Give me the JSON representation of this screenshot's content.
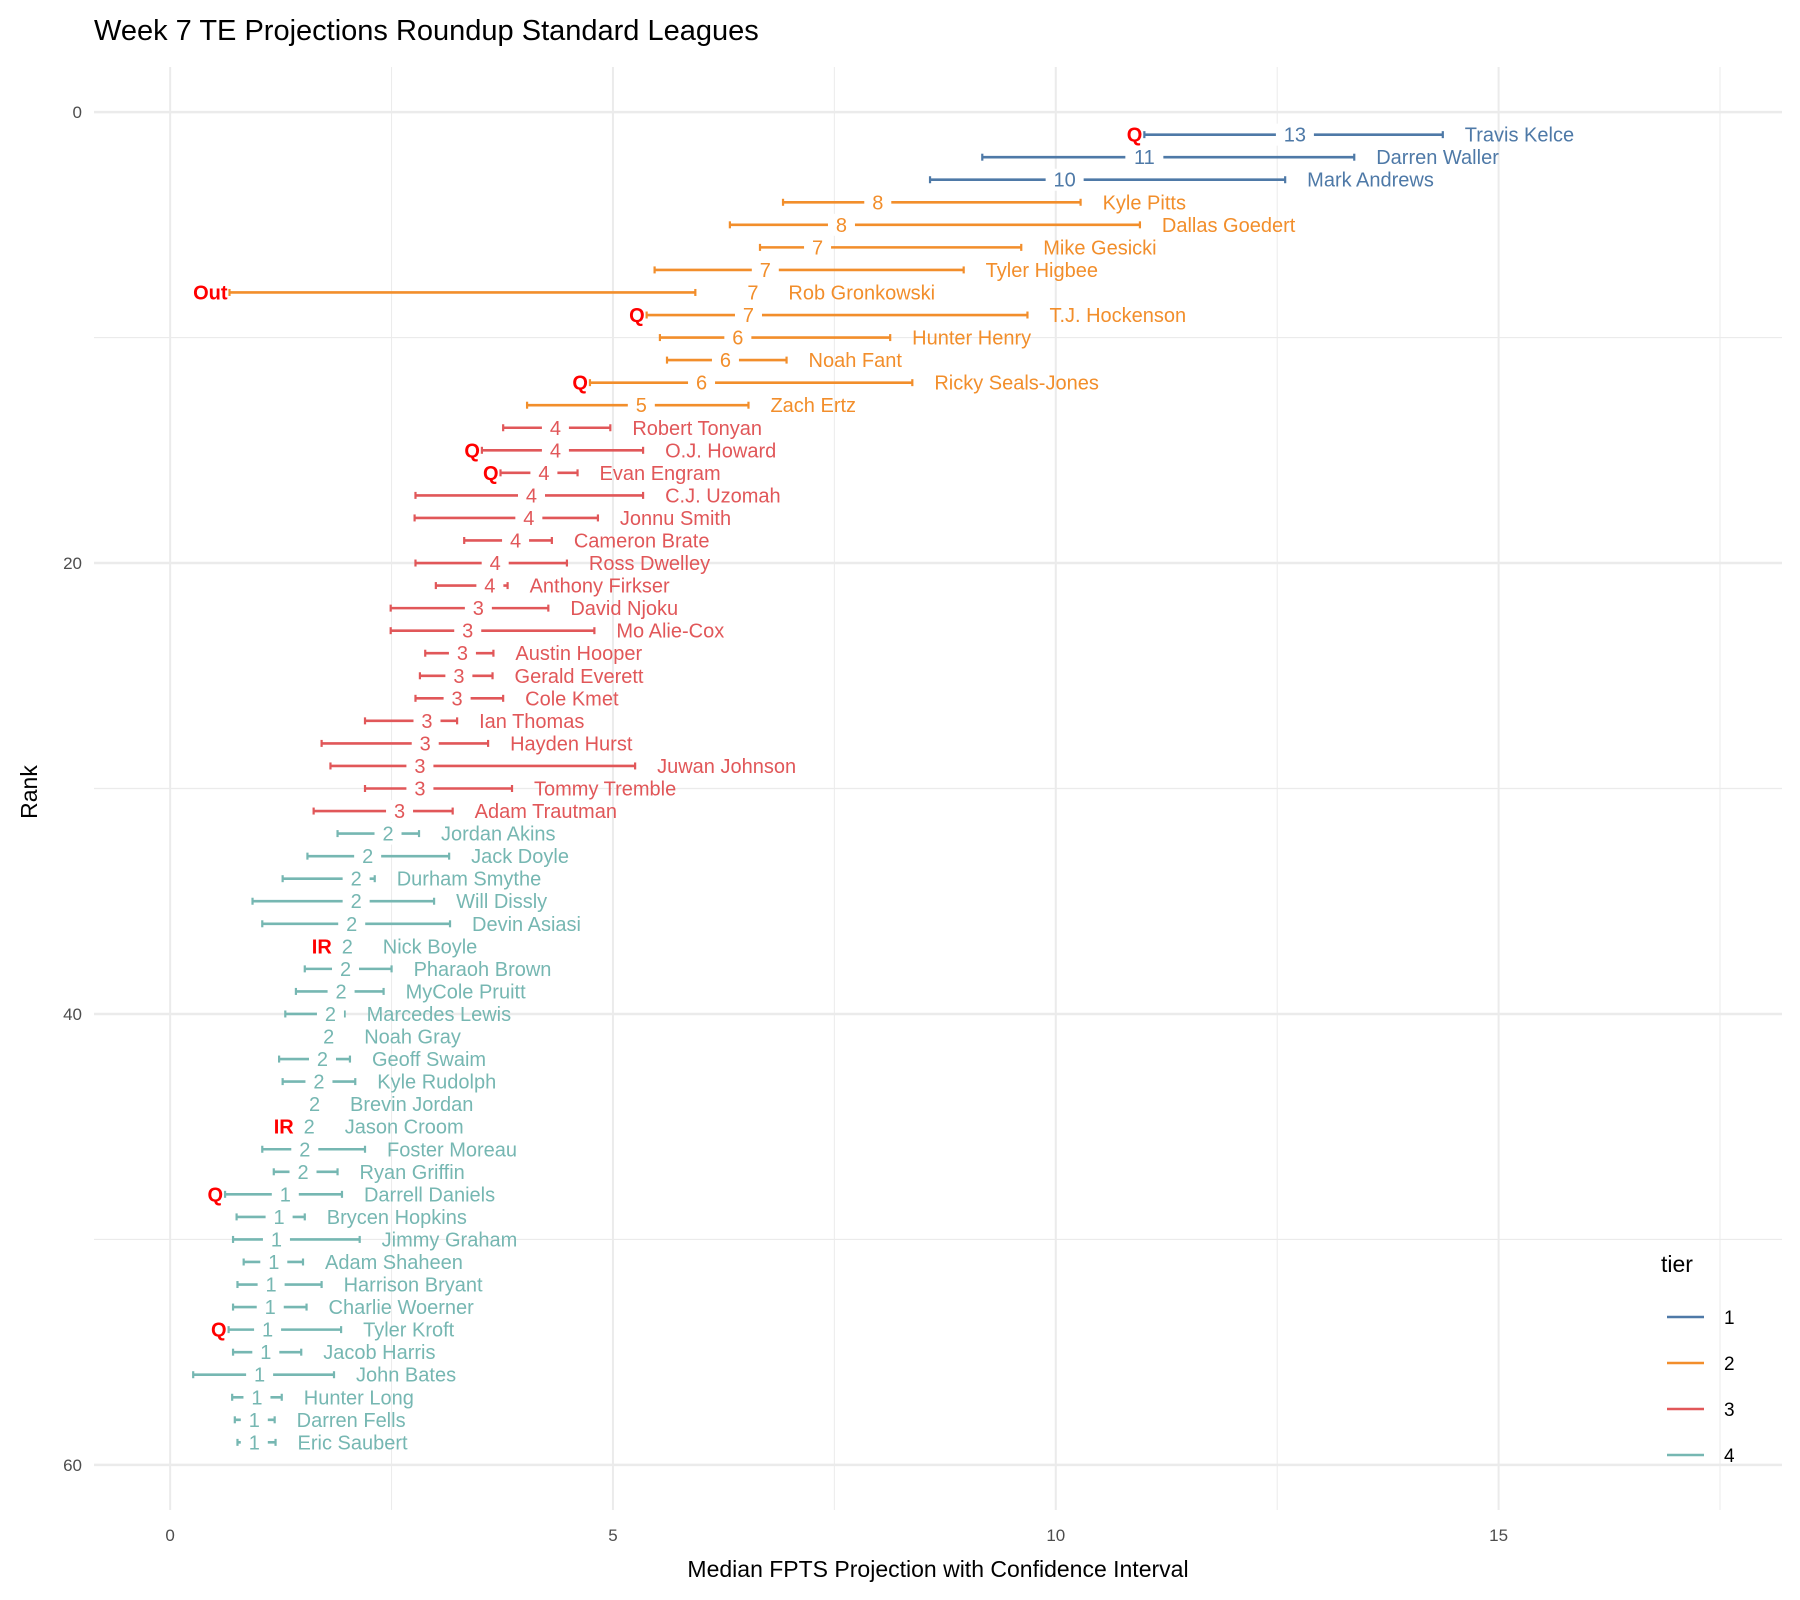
{
  "chart_data": {
    "type": "errorbar",
    "title": "Week 7 TE Projections Roundup Standard Leagues",
    "xlabel": "Median FPTS Projection with Confidence Interval",
    "ylabel": "Rank",
    "xlim": [
      -0.86,
      18.2
    ],
    "ylim": [
      62,
      -2
    ],
    "x_ticks": [
      0,
      5,
      10,
      15
    ],
    "y_ticks": [
      0,
      20,
      40,
      60
    ],
    "grid": true,
    "legend": {
      "title": "tier",
      "position": "right-bottom",
      "entries": [
        "1",
        "2",
        "3",
        "4"
      ]
    },
    "tier_colors": {
      "1": "#4E79A7",
      "2": "#F28E2B",
      "3": "#E15759",
      "4": "#76B7B2"
    },
    "status_color": "#FF0000",
    "players": [
      {
        "rank": 1,
        "name": "Travis Kelce",
        "tier": 1,
        "low": 11.0,
        "median": 12.7,
        "high": 14.37,
        "label": "13",
        "status": "Q"
      },
      {
        "rank": 2,
        "name": "Darren Waller",
        "tier": 1,
        "low": 9.17,
        "median": 11.0,
        "high": 13.37,
        "label": "11",
        "status": ""
      },
      {
        "rank": 3,
        "name": "Mark Andrews",
        "tier": 1,
        "low": 8.58,
        "median": 10.1,
        "high": 12.59,
        "label": "10",
        "status": ""
      },
      {
        "rank": 4,
        "name": "Kyle Pitts",
        "tier": 2,
        "low": 6.92,
        "median": 7.99,
        "high": 10.28,
        "label": "8",
        "status": ""
      },
      {
        "rank": 5,
        "name": "Dallas Goedert",
        "tier": 2,
        "low": 6.32,
        "median": 7.58,
        "high": 10.95,
        "label": "8",
        "status": ""
      },
      {
        "rank": 6,
        "name": "Mike Gesicki",
        "tier": 2,
        "low": 6.66,
        "median": 7.31,
        "high": 9.61,
        "label": "7",
        "status": ""
      },
      {
        "rank": 7,
        "name": "Tyler Higbee",
        "tier": 2,
        "low": 5.47,
        "median": 6.72,
        "high": 8.96,
        "label": "7",
        "status": ""
      },
      {
        "rank": 8,
        "name": "Rob Gronkowski",
        "tier": 2,
        "low": 0.67,
        "median": 6.58,
        "high": 5.93,
        "label": "7",
        "status": "Out"
      },
      {
        "rank": 9,
        "name": "T.J. Hockenson",
        "tier": 2,
        "low": 5.38,
        "median": 6.53,
        "high": 9.68,
        "label": "7",
        "status": "Q"
      },
      {
        "rank": 10,
        "name": "Hunter Henry",
        "tier": 2,
        "low": 5.53,
        "median": 6.41,
        "high": 8.13,
        "label": "6",
        "status": ""
      },
      {
        "rank": 11,
        "name": "Noah Fant",
        "tier": 2,
        "low": 5.61,
        "median": 6.27,
        "high": 6.96,
        "label": "6",
        "status": ""
      },
      {
        "rank": 12,
        "name": "Ricky Seals-Jones",
        "tier": 2,
        "low": 4.74,
        "median": 6.0,
        "high": 8.38,
        "label": "6",
        "status": "Q"
      },
      {
        "rank": 13,
        "name": "Zach Ertz",
        "tier": 2,
        "low": 4.03,
        "median": 5.32,
        "high": 6.53,
        "label": "5",
        "status": ""
      },
      {
        "rank": 14,
        "name": "Robert Tonyan",
        "tier": 3,
        "low": 3.76,
        "median": 4.35,
        "high": 4.97,
        "label": "4",
        "status": ""
      },
      {
        "rank": 15,
        "name": "O.J. Howard",
        "tier": 3,
        "low": 3.52,
        "median": 4.35,
        "high": 5.34,
        "label": "4",
        "status": "Q"
      },
      {
        "rank": 16,
        "name": "Evan Engram",
        "tier": 3,
        "low": 3.73,
        "median": 4.22,
        "high": 4.6,
        "label": "4",
        "status": "Q"
      },
      {
        "rank": 17,
        "name": "C.J. Uzomah",
        "tier": 3,
        "low": 2.77,
        "median": 4.08,
        "high": 5.34,
        "label": "4",
        "status": ""
      },
      {
        "rank": 18,
        "name": "Jonnu Smith",
        "tier": 3,
        "low": 2.76,
        "median": 4.05,
        "high": 4.83,
        "label": "4",
        "status": ""
      },
      {
        "rank": 19,
        "name": "Cameron Brate",
        "tier": 3,
        "low": 3.32,
        "median": 3.9,
        "high": 4.31,
        "label": "4",
        "status": ""
      },
      {
        "rank": 20,
        "name": "Ross Dwelley",
        "tier": 3,
        "low": 2.77,
        "median": 3.67,
        "high": 4.48,
        "label": "4",
        "status": ""
      },
      {
        "rank": 21,
        "name": "Anthony Firkser",
        "tier": 3,
        "low": 3.0,
        "median": 3.61,
        "high": 3.81,
        "label": "4",
        "status": ""
      },
      {
        "rank": 22,
        "name": "David Njoku",
        "tier": 3,
        "low": 2.49,
        "median": 3.48,
        "high": 4.27,
        "label": "3",
        "status": ""
      },
      {
        "rank": 23,
        "name": "Mo Alie-Cox",
        "tier": 3,
        "low": 2.49,
        "median": 3.36,
        "high": 4.79,
        "label": "3",
        "status": ""
      },
      {
        "rank": 24,
        "name": "Austin Hooper",
        "tier": 3,
        "low": 2.88,
        "median": 3.3,
        "high": 3.65,
        "label": "3",
        "status": ""
      },
      {
        "rank": 25,
        "name": "Gerald Everett",
        "tier": 3,
        "low": 2.82,
        "median": 3.26,
        "high": 3.64,
        "label": "3",
        "status": ""
      },
      {
        "rank": 26,
        "name": "Cole Kmet",
        "tier": 3,
        "low": 2.77,
        "median": 3.24,
        "high": 3.76,
        "label": "3",
        "status": ""
      },
      {
        "rank": 27,
        "name": "Ian Thomas",
        "tier": 3,
        "low": 2.2,
        "median": 2.9,
        "high": 3.24,
        "label": "3",
        "status": ""
      },
      {
        "rank": 28,
        "name": "Hayden Hurst",
        "tier": 3,
        "low": 1.71,
        "median": 2.88,
        "high": 3.59,
        "label": "3",
        "status": ""
      },
      {
        "rank": 29,
        "name": "Juwan Johnson",
        "tier": 3,
        "low": 1.81,
        "median": 2.82,
        "high": 5.25,
        "label": "3",
        "status": ""
      },
      {
        "rank": 30,
        "name": "Tommy Tremble",
        "tier": 3,
        "low": 2.2,
        "median": 2.82,
        "high": 3.86,
        "label": "3",
        "status": ""
      },
      {
        "rank": 31,
        "name": "Adam Trautman",
        "tier": 3,
        "low": 1.62,
        "median": 2.59,
        "high": 3.19,
        "label": "3",
        "status": ""
      },
      {
        "rank": 32,
        "name": "Jordan Akins",
        "tier": 4,
        "low": 1.89,
        "median": 2.46,
        "high": 2.81,
        "label": "2",
        "status": ""
      },
      {
        "rank": 33,
        "name": "Jack Doyle",
        "tier": 4,
        "low": 1.55,
        "median": 2.23,
        "high": 3.15,
        "label": "2",
        "status": ""
      },
      {
        "rank": 34,
        "name": "Durham Smythe",
        "tier": 4,
        "low": 1.27,
        "median": 2.1,
        "high": 2.31,
        "label": "2",
        "status": ""
      },
      {
        "rank": 35,
        "name": "Will Dissly",
        "tier": 4,
        "low": 0.93,
        "median": 2.1,
        "high": 2.98,
        "label": "2",
        "status": ""
      },
      {
        "rank": 36,
        "name": "Devin Asiasi",
        "tier": 4,
        "low": 1.04,
        "median": 2.05,
        "high": 3.16,
        "label": "2",
        "status": ""
      },
      {
        "rank": 37,
        "name": "Nick Boyle",
        "tier": 4,
        "low": null,
        "median": 2.0,
        "high": null,
        "label": "2",
        "status": "IR"
      },
      {
        "rank": 38,
        "name": "Pharaoh Brown",
        "tier": 4,
        "low": 1.52,
        "median": 1.98,
        "high": 2.5,
        "label": "2",
        "status": ""
      },
      {
        "rank": 39,
        "name": "MyCole Pruitt",
        "tier": 4,
        "low": 1.42,
        "median": 1.93,
        "high": 2.41,
        "label": "2",
        "status": ""
      },
      {
        "rank": 40,
        "name": "Marcedes Lewis",
        "tier": 4,
        "low": 1.3,
        "median": 1.81,
        "high": 1.97,
        "label": "2",
        "status": ""
      },
      {
        "rank": 41,
        "name": "Noah Gray",
        "tier": 4,
        "low": null,
        "median": 1.79,
        "high": null,
        "label": "2",
        "status": ""
      },
      {
        "rank": 42,
        "name": "Geoff Swaim",
        "tier": 4,
        "low": 1.23,
        "median": 1.72,
        "high": 2.03,
        "label": "2",
        "status": ""
      },
      {
        "rank": 43,
        "name": "Kyle Rudolph",
        "tier": 4,
        "low": 1.27,
        "median": 1.68,
        "high": 2.09,
        "label": "2",
        "status": ""
      },
      {
        "rank": 44,
        "name": "Brevin Jordan",
        "tier": 4,
        "low": null,
        "median": 1.63,
        "high": null,
        "label": "2",
        "status": ""
      },
      {
        "rank": 45,
        "name": "Jason Croom",
        "tier": 4,
        "low": null,
        "median": 1.57,
        "high": null,
        "label": "2",
        "status": "IR"
      },
      {
        "rank": 46,
        "name": "Foster Moreau",
        "tier": 4,
        "low": 1.04,
        "median": 1.52,
        "high": 2.2,
        "label": "2",
        "status": ""
      },
      {
        "rank": 47,
        "name": "Ryan Griffin",
        "tier": 4,
        "low": 1.17,
        "median": 1.5,
        "high": 1.89,
        "label": "2",
        "status": ""
      },
      {
        "rank": 48,
        "name": "Darrell Daniels",
        "tier": 4,
        "low": 0.62,
        "median": 1.3,
        "high": 1.94,
        "label": "1",
        "status": "Q"
      },
      {
        "rank": 49,
        "name": "Brycen Hopkins",
        "tier": 4,
        "low": 0.75,
        "median": 1.23,
        "high": 1.52,
        "label": "1",
        "status": ""
      },
      {
        "rank": 50,
        "name": "Jimmy Graham",
        "tier": 4,
        "low": 0.71,
        "median": 1.2,
        "high": 2.14,
        "label": "1",
        "status": ""
      },
      {
        "rank": 51,
        "name": "Adam Shaheen",
        "tier": 4,
        "low": 0.83,
        "median": 1.17,
        "high": 1.5,
        "label": "1",
        "status": ""
      },
      {
        "rank": 52,
        "name": "Harrison Bryant",
        "tier": 4,
        "low": 0.76,
        "median": 1.14,
        "high": 1.71,
        "label": "1",
        "status": ""
      },
      {
        "rank": 53,
        "name": "Charlie Woerner",
        "tier": 4,
        "low": 0.71,
        "median": 1.13,
        "high": 1.54,
        "label": "1",
        "status": ""
      },
      {
        "rank": 54,
        "name": "Tyler Kroft",
        "tier": 4,
        "low": 0.66,
        "median": 1.1,
        "high": 1.93,
        "label": "1",
        "status": "Q"
      },
      {
        "rank": 55,
        "name": "Jacob Harris",
        "tier": 4,
        "low": 0.71,
        "median": 1.08,
        "high": 1.48,
        "label": "1",
        "status": ""
      },
      {
        "rank": 56,
        "name": "John Bates",
        "tier": 4,
        "low": 0.26,
        "median": 1.01,
        "high": 1.85,
        "label": "1",
        "status": ""
      },
      {
        "rank": 57,
        "name": "Hunter Long",
        "tier": 4,
        "low": 0.7,
        "median": 0.98,
        "high": 1.26,
        "label": "1",
        "status": ""
      },
      {
        "rank": 58,
        "name": "Darren Fells",
        "tier": 4,
        "low": 0.73,
        "median": 0.95,
        "high": 1.18,
        "label": "1",
        "status": ""
      },
      {
        "rank": 59,
        "name": "Eric Saubert",
        "tier": 4,
        "low": 0.76,
        "median": 0.95,
        "high": 1.19,
        "label": "1",
        "status": ""
      }
    ]
  }
}
